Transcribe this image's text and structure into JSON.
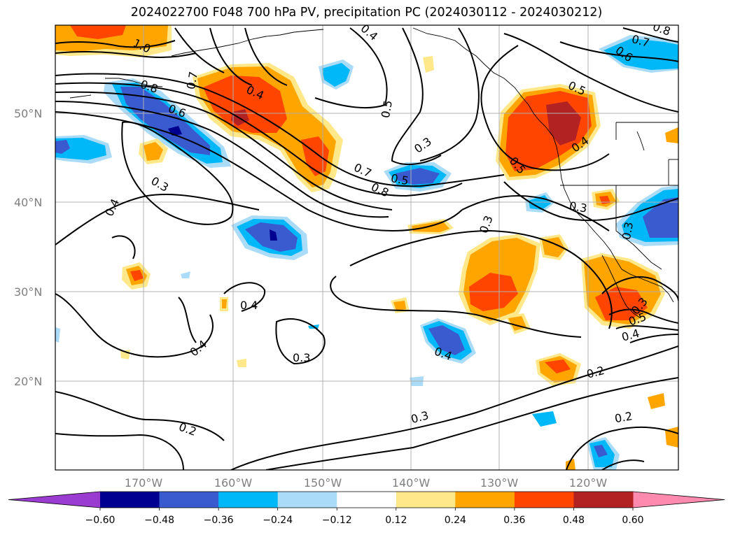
{
  "title": "2024022700 F048 700 hPa PV, precipitation PC (2024030112 - 2024030212)",
  "longitude_labels": [
    "170°W",
    "160°W",
    "150°W",
    "140°W",
    "130°W",
    "120°W"
  ],
  "latitude_labels": [
    "50°N",
    "40°N",
    "30°N",
    "20°N"
  ],
  "contour_labels": [
    "1.0",
    "0.8",
    "0.6",
    "0.4",
    "0.7",
    "0.5",
    "0.3",
    "0.7",
    "0.8",
    "0.5",
    "0.3",
    "0.5",
    "0.4",
    "0.5",
    "0.3",
    "0.3",
    "0.4",
    "0.3",
    "0.4",
    "0.4",
    "0.3",
    "0.4",
    "0.2",
    "0.3",
    "0.2",
    "0.2",
    "0.4",
    "0.5",
    "0.3",
    "0.7",
    "0.6",
    "0.8",
    "0.4"
  ],
  "colorbar": {
    "ticks": [
      "−0.60",
      "−0.48",
      "−0.36",
      "−0.24",
      "−0.12",
      "0.12",
      "0.24",
      "0.36",
      "0.48",
      "0.60"
    ],
    "under_color": "#9a3ccf",
    "over_color": "#ff8ab0",
    "colors": [
      "#000090",
      "#3a5ad0",
      "#00b8f8",
      "#aadcf8",
      "#ffffff",
      "#ffe88a",
      "#ffa500",
      "#ff4500",
      "#b22222"
    ]
  },
  "fill_colors": {
    "neg_light": "#aadcf8",
    "neg_mid": "#00b8f8",
    "neg_strong": "#3a5ad0",
    "neg_max": "#000090",
    "pos_light": "#ffe88a",
    "pos_mid": "#ffa500",
    "pos_strong": "#ff4500",
    "pos_max": "#b22222"
  }
}
